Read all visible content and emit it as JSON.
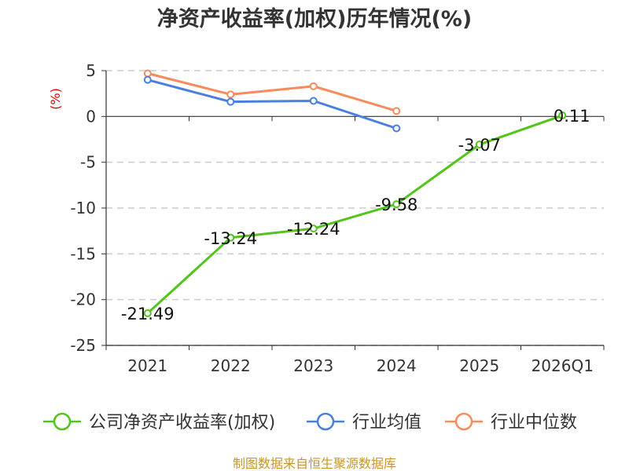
{
  "chart_data": {
    "type": "line",
    "title": "净资产收益率(加权)历年情况(%)",
    "ylabel": "(%)",
    "categories": [
      "2021",
      "2022",
      "2023",
      "2024",
      "2025",
      "2026Q1"
    ],
    "ylim": [
      -25,
      5
    ],
    "yticks": [
      5,
      0,
      -5,
      -10,
      -15,
      -20,
      -25
    ],
    "grid": true,
    "legend_position": "bottom",
    "series": [
      {
        "name": "公司净资产收益率(加权)",
        "color": "#52c41a",
        "values": [
          -21.49,
          -13.24,
          -12.24,
          -9.58,
          -3.07,
          0.11
        ],
        "labels": [
          "-21.49",
          "-13.24",
          "-12.24",
          "-9.58",
          "-3.07",
          "0.11"
        ]
      },
      {
        "name": "行业均值",
        "color": "#4a7fe0",
        "values": [
          4.0,
          1.6,
          1.7,
          -1.3,
          null,
          null
        ]
      },
      {
        "name": "行业中位数",
        "color": "#f68c5c",
        "values": [
          4.7,
          2.4,
          3.3,
          0.6,
          null,
          null
        ]
      }
    ]
  },
  "source": "制图数据来自恒生聚源数据库"
}
